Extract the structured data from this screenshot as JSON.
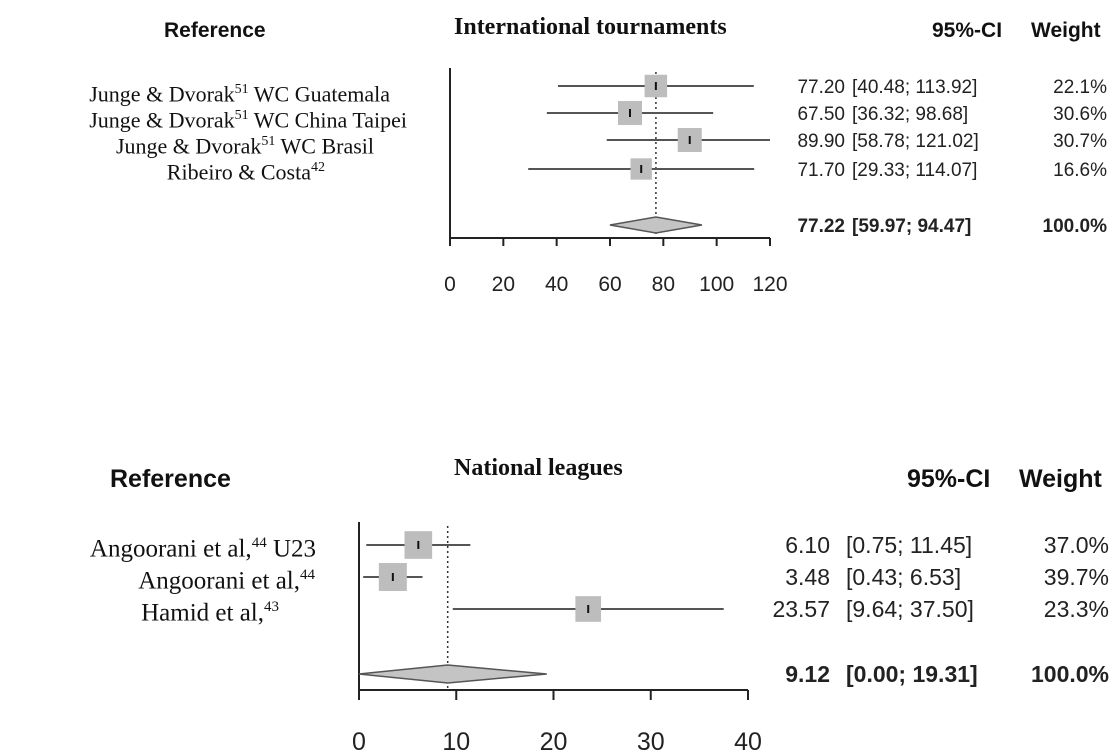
{
  "chart_data": [
    {
      "type": "forest",
      "title": "International tournaments",
      "headers": {
        "reference": "Reference",
        "ci": "95%-CI",
        "weight": "Weight"
      },
      "xlim": [
        0,
        120
      ],
      "xticks": [
        "0",
        "20",
        "40",
        "60",
        "80",
        "100",
        "120"
      ],
      "studies": [
        {
          "name": "Junge & Dvorak",
          "sup": "51",
          "suffix": " WC Guatemala",
          "est": 77.2,
          "lo": 40.48,
          "hi": 113.92,
          "est_text": "77.20",
          "ci_text": "[40.48; 113.92]",
          "weight_text": "22.1%"
        },
        {
          "name": "Junge & Dvorak",
          "sup": "51",
          "suffix": " WC China Taipei",
          "est": 67.5,
          "lo": 36.32,
          "hi": 98.68,
          "est_text": "67.50",
          "ci_text": "[36.32;  98.68]",
          "weight_text": "30.6%"
        },
        {
          "name": "Junge & Dvorak",
          "sup": "51",
          "suffix": " WC Brasil",
          "est": 89.9,
          "lo": 58.78,
          "hi": 121.02,
          "est_text": "89.90",
          "ci_text": "[58.78; 121.02]",
          "weight_text": "30.7%"
        },
        {
          "name": "Ribeiro & Costa",
          "sup": "42",
          "suffix": "",
          "est": 71.7,
          "lo": 29.33,
          "hi": 114.07,
          "est_text": "71.70",
          "ci_text": "[29.33; 114.07]",
          "weight_text": "16.6%"
        }
      ],
      "summary": {
        "est": 77.22,
        "lo": 59.97,
        "hi": 94.47,
        "est_text": "77.22",
        "ci_text": "[59.97;  94.47]",
        "weight_text": "100.0%"
      }
    },
    {
      "type": "forest",
      "title": "National leagues",
      "headers": {
        "reference": "Reference",
        "ci": "95%-CI",
        "weight": "Weight"
      },
      "xlim": [
        0,
        40
      ],
      "xticks": [
        "0",
        "10",
        "20",
        "30",
        "40"
      ],
      "studies": [
        {
          "name": "Angoorani et al,",
          "sup": "44",
          "suffix": " U23",
          "est": 6.1,
          "lo": 0.75,
          "hi": 11.45,
          "est_text": "6.10",
          "ci_text": "[0.75; 11.45]",
          "weight_text": "37.0%"
        },
        {
          "name": "Angoorani et al,",
          "sup": "44",
          "suffix": "",
          "est": 3.48,
          "lo": 0.43,
          "hi": 6.53,
          "est_text": "3.48",
          "ci_text": "[0.43;  6.53]",
          "weight_text": "39.7%"
        },
        {
          "name": "Hamid et al,",
          "sup": "43",
          "suffix": "",
          "est": 23.57,
          "lo": 9.64,
          "hi": 37.5,
          "est_text": "23.57",
          "ci_text": "[9.64; 37.50]",
          "weight_text": "23.3%"
        }
      ],
      "summary": {
        "est": 9.12,
        "lo": 0.0,
        "hi": 19.31,
        "est_text": "9.12",
        "ci_text": "[0.00; 19.31]",
        "weight_text": "100.0%"
      }
    }
  ]
}
